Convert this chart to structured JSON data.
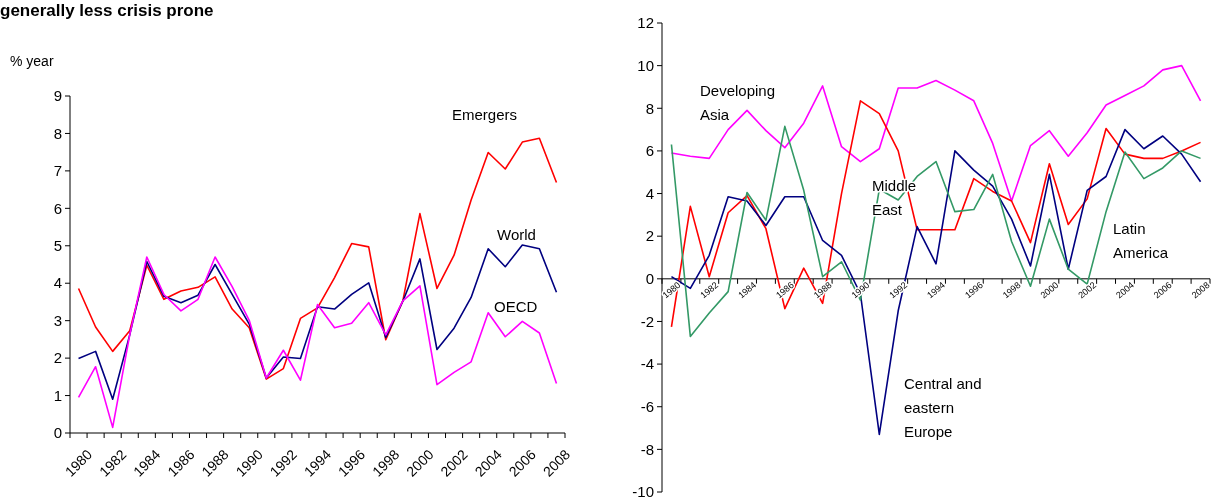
{
  "chart_data": [
    {
      "type": "line",
      "title": "generally less crisis prone",
      "ylabel": "% year",
      "categories": [
        "1980",
        null,
        "1982",
        null,
        "1984",
        null,
        "1986",
        null,
        "1988",
        null,
        "1990",
        null,
        "1992",
        null,
        "1994",
        null,
        "1996",
        null,
        "1998",
        null,
        "2000",
        null,
        "2002",
        null,
        "2004",
        null,
        "2006",
        null,
        "2008"
      ],
      "ylim": [
        0,
        9
      ],
      "yticks": [
        0,
        1,
        2,
        3,
        4,
        5,
        6,
        7,
        8,
        9
      ],
      "series": [
        {
          "name": "Emergers",
          "color": "#ff0000",
          "values": [
            3.86,
            2.83,
            2.18,
            2.73,
            4.48,
            3.57,
            3.79,
            3.89,
            4.17,
            3.31,
            2.81,
            1.44,
            1.72,
            3.06,
            3.34,
            4.15,
            5.06,
            4.97,
            2.49,
            3.53,
            5.86,
            3.86,
            4.75,
            6.22,
            7.49,
            7.05,
            7.77,
            7.87,
            6.69
          ]
        },
        {
          "name": "World",
          "color": "#000080",
          "values": [
            1.99,
            2.18,
            0.9,
            2.62,
            4.58,
            3.65,
            3.48,
            3.68,
            4.5,
            3.7,
            2.91,
            1.47,
            2.03,
            1.99,
            3.37,
            3.31,
            3.7,
            4.01,
            2.55,
            3.52,
            4.65,
            2.23,
            2.8,
            3.62,
            4.92,
            4.44,
            5.02,
            4.92,
            3.76
          ]
        },
        {
          "name": "OECD",
          "color": "#ff00ff",
          "values": [
            0.95,
            1.77,
            0.15,
            2.62,
            4.7,
            3.7,
            3.26,
            3.57,
            4.7,
            3.91,
            3.01,
            1.47,
            2.21,
            1.41,
            3.43,
            2.81,
            2.93,
            3.48,
            2.62,
            3.53,
            3.93,
            1.29,
            1.62,
            1.9,
            3.21,
            2.57,
            2.98,
            2.67,
            1.32
          ]
        }
      ]
    },
    {
      "type": "line",
      "categories": [
        "1980",
        null,
        "1982",
        null,
        "1984",
        null,
        "1986",
        null,
        "1988",
        null,
        "1990",
        null,
        "1992",
        null,
        "1994",
        null,
        "1996",
        null,
        "1998",
        null,
        "2000",
        null,
        "2002",
        null,
        "2004",
        null,
        "2006",
        null,
        "2008"
      ],
      "ylim": [
        -10,
        12
      ],
      "yticks": [
        -10,
        -8,
        -6,
        -4,
        -2,
        0,
        2,
        4,
        6,
        8,
        10,
        12
      ],
      "series": [
        {
          "name": "Developing Asia",
          "color": "#ff00ff",
          "values": [
            5.9,
            5.75,
            5.65,
            7.0,
            7.9,
            6.95,
            6.15,
            7.3,
            9.05,
            6.2,
            5.5,
            6.1,
            8.95,
            8.95,
            9.3,
            8.85,
            8.35,
            6.35,
            3.65,
            6.25,
            6.95,
            5.75,
            6.85,
            8.15,
            8.6,
            9.05,
            9.8,
            10.0,
            8.35
          ]
        },
        {
          "name": "Middle East",
          "color": "#ff0000",
          "values": [
            -2.25,
            3.4,
            0.1,
            3.1,
            3.9,
            2.35,
            -1.4,
            0.5,
            -1.15,
            4.0,
            8.35,
            7.75,
            6.0,
            2.3,
            2.3,
            2.3,
            4.7,
            4.1,
            3.65,
            1.7,
            5.4,
            2.55,
            3.75,
            7.05,
            5.85,
            5.65,
            5.65,
            6.0,
            6.4
          ]
        },
        {
          "name": "Central and eastern Europe",
          "color": "#000080",
          "values": [
            0.1,
            -0.45,
            1.1,
            3.85,
            3.65,
            2.5,
            3.85,
            3.85,
            1.8,
            1.1,
            -0.7,
            -7.3,
            -1.5,
            2.45,
            0.7,
            6.0,
            5.1,
            4.35,
            2.8,
            0.6,
            4.9,
            0.45,
            4.15,
            4.8,
            7.0,
            6.1,
            6.7,
            5.85,
            4.55
          ]
        },
        {
          "name": "Latin America",
          "color": "#339966",
          "values": [
            6.3,
            -2.7,
            -1.6,
            -0.6,
            4.05,
            2.75,
            7.15,
            4.15,
            0.1,
            0.8,
            -1.0,
            4.2,
            3.7,
            4.8,
            5.5,
            3.15,
            3.25,
            4.9,
            1.75,
            -0.35,
            2.8,
            0.45,
            -0.25,
            3.15,
            5.95,
            4.7,
            5.2,
            6.0,
            5.65
          ]
        }
      ]
    }
  ]
}
